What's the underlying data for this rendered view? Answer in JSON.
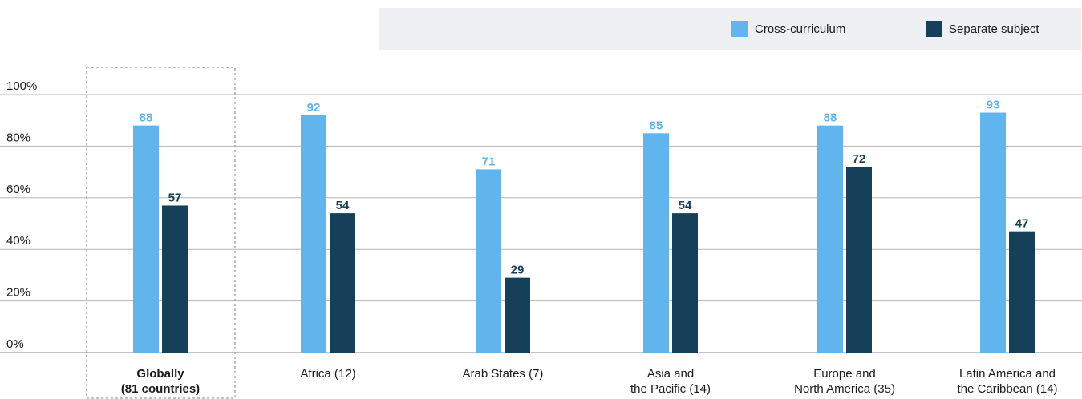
{
  "chart_data": {
    "type": "bar",
    "categories": [
      [
        "Globally",
        "(81 countries)"
      ],
      [
        "Africa (12)"
      ],
      [
        "Arab States (7)"
      ],
      [
        "Asia and",
        "the Pacific (14)"
      ],
      [
        "Europe and",
        "North America (35)"
      ],
      [
        "Latin America and",
        "the Caribbean (14)"
      ]
    ],
    "highlighted_category_index": 0,
    "series": [
      {
        "name": "Cross-curriculum",
        "color": "#62b4ec",
        "values": [
          88,
          92,
          71,
          85,
          88,
          93
        ]
      },
      {
        "name": "Separate subject",
        "color": "#163f5a",
        "values": [
          57,
          54,
          29,
          54,
          72,
          47
        ]
      }
    ],
    "ylim": [
      0,
      100
    ],
    "yticks": [
      "0%",
      "20%",
      "40%",
      "60%",
      "80%",
      "100%"
    ],
    "grid": true,
    "legend_position": "top-right"
  }
}
